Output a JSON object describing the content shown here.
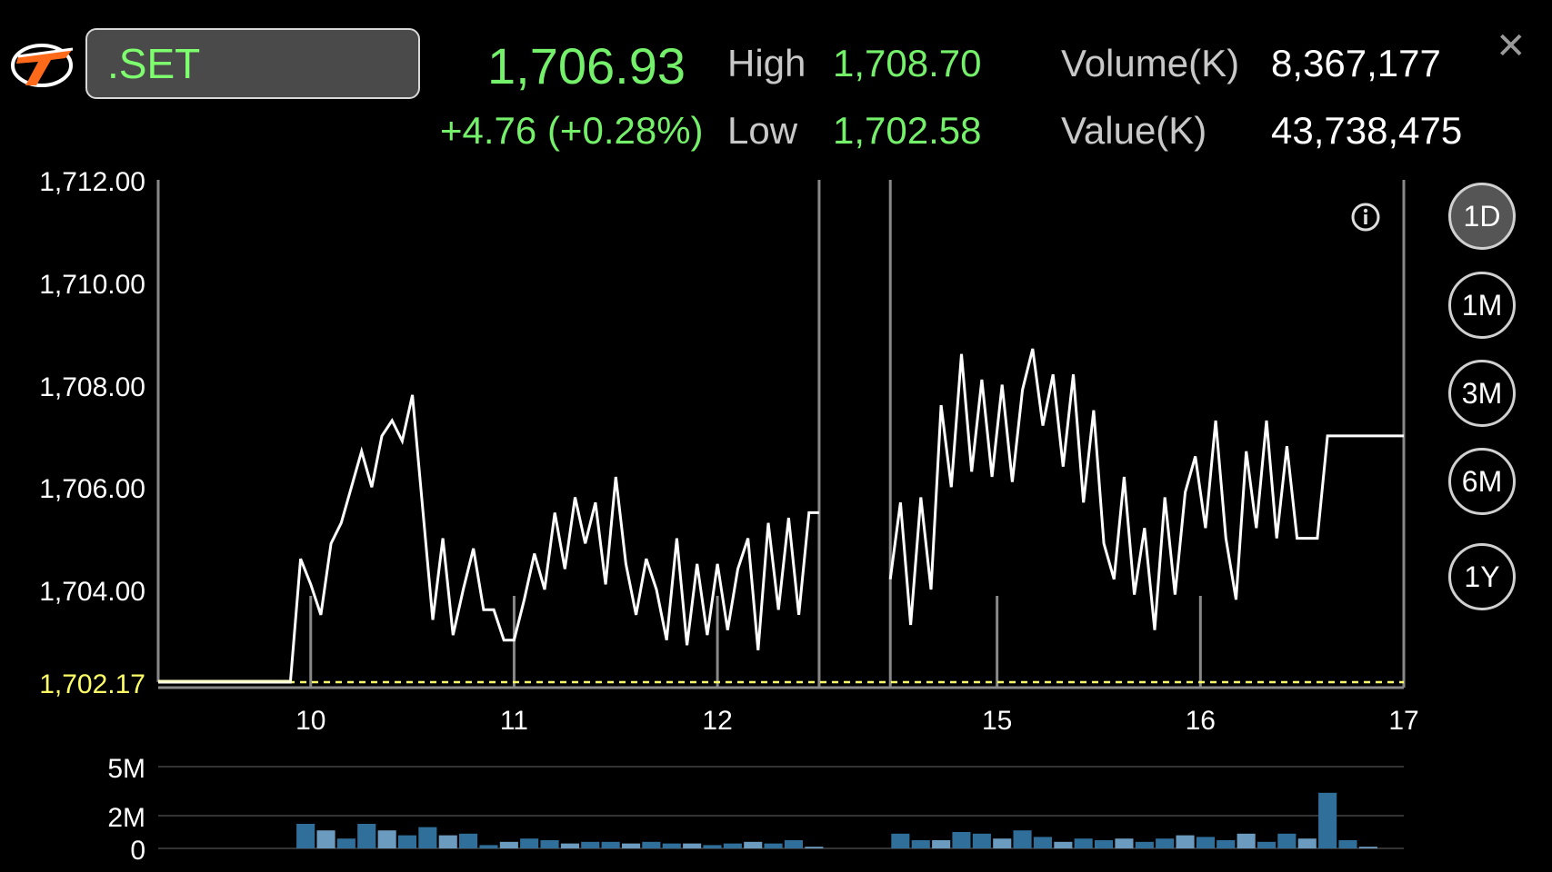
{
  "header": {
    "symbol": ".SET",
    "last": "1,706.93",
    "change": "+4.76 (+0.28%)",
    "high_label": "High",
    "high_value": "1,708.70",
    "low_label": "Low",
    "low_value": "1,702.58",
    "volume_label": "Volume(K)",
    "volume_value": "8,367,177",
    "value_label": "Value(K)",
    "value_value": "43,738,475",
    "close_icon": "close-icon"
  },
  "periods": [
    "1D",
    "1M",
    "3M",
    "6M",
    "1Y"
  ],
  "active_period": "1D",
  "colors": {
    "price_line": "#ffffff",
    "up": "#74f06a",
    "prev_close": "#ffff66",
    "volume_bar": "#2f6f9a",
    "volume_bar_light": "#6b9bbf"
  },
  "chart_data": [
    {
      "type": "line",
      "y_ticks": [
        "1,712.00",
        "1,710.00",
        "1,708.00",
        "1,706.00",
        "1,704.00"
      ],
      "ylim": [
        1702.17,
        1712
      ],
      "reference_line": {
        "label": "1,702.17",
        "value": 1702.17
      },
      "x_tick_labels": [
        "10",
        "11",
        "12",
        "15",
        "16",
        "17"
      ],
      "x_ticks": [
        3,
        7,
        11,
        16.5,
        20.5,
        24.5
      ],
      "xlim": [
        0,
        24.5
      ],
      "segments": [
        [
          [
            0,
            1702.17
          ],
          [
            2.6,
            1702.17
          ],
          [
            2.8,
            1704.6
          ],
          [
            3.0,
            1704.1
          ],
          [
            3.2,
            1703.5
          ],
          [
            3.4,
            1704.9
          ],
          [
            3.6,
            1705.3
          ],
          [
            3.8,
            1706.0
          ],
          [
            4.0,
            1706.7
          ],
          [
            4.2,
            1706.0
          ],
          [
            4.4,
            1707.0
          ],
          [
            4.6,
            1707.3
          ],
          [
            4.8,
            1706.9
          ],
          [
            5.0,
            1707.8
          ],
          [
            5.4,
            1703.4
          ],
          [
            5.6,
            1705.0
          ],
          [
            5.8,
            1703.1
          ],
          [
            6.0,
            1704.0
          ],
          [
            6.2,
            1704.8
          ],
          [
            6.4,
            1703.6
          ],
          [
            6.6,
            1703.6
          ],
          [
            6.8,
            1703.0
          ],
          [
            7.0,
            1703.0
          ],
          [
            7.2,
            1703.8
          ],
          [
            7.4,
            1704.7
          ],
          [
            7.6,
            1704.0
          ],
          [
            7.8,
            1705.5
          ],
          [
            8.0,
            1704.4
          ],
          [
            8.2,
            1705.8
          ],
          [
            8.4,
            1704.9
          ],
          [
            8.6,
            1705.7
          ],
          [
            8.8,
            1704.1
          ],
          [
            9.0,
            1706.2
          ],
          [
            9.2,
            1704.5
          ],
          [
            9.4,
            1703.5
          ],
          [
            9.6,
            1704.6
          ],
          [
            9.8,
            1704.0
          ],
          [
            10.0,
            1703.0
          ],
          [
            10.2,
            1705.0
          ],
          [
            10.4,
            1702.9
          ],
          [
            10.6,
            1704.5
          ],
          [
            10.8,
            1703.1
          ],
          [
            11.0,
            1704.5
          ],
          [
            11.2,
            1703.2
          ],
          [
            11.4,
            1704.4
          ],
          [
            11.6,
            1705.0
          ],
          [
            11.8,
            1702.8
          ],
          [
            12.0,
            1705.3
          ],
          [
            12.2,
            1703.6
          ],
          [
            12.4,
            1705.4
          ],
          [
            12.6,
            1703.5
          ],
          [
            12.8,
            1705.5
          ],
          [
            13.0,
            1705.5
          ]
        ],
        [
          [
            14.4,
            1704.2
          ],
          [
            14.6,
            1705.7
          ],
          [
            14.8,
            1703.3
          ],
          [
            15.0,
            1705.8
          ],
          [
            15.2,
            1704.0
          ],
          [
            15.4,
            1707.6
          ],
          [
            15.6,
            1706.0
          ],
          [
            15.8,
            1708.6
          ],
          [
            16.0,
            1706.3
          ],
          [
            16.2,
            1708.1
          ],
          [
            16.4,
            1706.2
          ],
          [
            16.6,
            1708.0
          ],
          [
            16.8,
            1706.1
          ],
          [
            17.0,
            1707.9
          ],
          [
            17.2,
            1708.7
          ],
          [
            17.4,
            1707.2
          ],
          [
            17.6,
            1708.2
          ],
          [
            17.8,
            1706.4
          ],
          [
            18.0,
            1708.2
          ],
          [
            18.2,
            1705.7
          ],
          [
            18.4,
            1707.5
          ],
          [
            18.6,
            1704.9
          ],
          [
            18.8,
            1704.2
          ],
          [
            19.0,
            1706.2
          ],
          [
            19.2,
            1703.9
          ],
          [
            19.4,
            1705.2
          ],
          [
            19.6,
            1703.2
          ],
          [
            19.8,
            1705.8
          ],
          [
            20.0,
            1703.9
          ],
          [
            20.2,
            1705.9
          ],
          [
            20.4,
            1706.6
          ],
          [
            20.6,
            1705.2
          ],
          [
            20.8,
            1707.3
          ],
          [
            21.0,
            1705.0
          ],
          [
            21.2,
            1703.8
          ],
          [
            21.4,
            1706.7
          ],
          [
            21.6,
            1705.2
          ],
          [
            21.8,
            1707.3
          ],
          [
            22.0,
            1705.0
          ],
          [
            22.2,
            1706.8
          ],
          [
            22.4,
            1705.0
          ],
          [
            22.6,
            1705.0
          ],
          [
            22.8,
            1705.0
          ],
          [
            23.0,
            1707.0
          ],
          [
            24.5,
            1707.0
          ]
        ]
      ],
      "session_breaks": [
        13,
        14.4
      ]
    },
    {
      "type": "bar",
      "y_ticks": [
        "5M",
        "2M",
        "0"
      ],
      "ylim": [
        0,
        5
      ],
      "bar_width": 0.36,
      "series": [
        {
          "values": [
            [
              2.9,
              1.5
            ],
            [
              3.3,
              1.1
            ],
            [
              3.7,
              0.6
            ],
            [
              4.1,
              1.5
            ],
            [
              4.5,
              1.1
            ],
            [
              4.9,
              0.8
            ],
            [
              5.3,
              1.3
            ],
            [
              5.7,
              0.8
            ],
            [
              6.1,
              0.9
            ],
            [
              6.5,
              0.2
            ],
            [
              6.9,
              0.4
            ],
            [
              7.3,
              0.6
            ],
            [
              7.7,
              0.5
            ],
            [
              8.1,
              0.3
            ],
            [
              8.5,
              0.4
            ],
            [
              8.9,
              0.4
            ],
            [
              9.3,
              0.3
            ],
            [
              9.7,
              0.4
            ],
            [
              10.1,
              0.3
            ],
            [
              10.5,
              0.3
            ],
            [
              10.9,
              0.2
            ],
            [
              11.3,
              0.3
            ],
            [
              11.7,
              0.4
            ],
            [
              12.1,
              0.3
            ],
            [
              12.5,
              0.5
            ],
            [
              12.9,
              0.1
            ],
            [
              14.6,
              0.9
            ],
            [
              15.0,
              0.5
            ],
            [
              15.4,
              0.5
            ],
            [
              15.8,
              1.0
            ],
            [
              16.2,
              0.9
            ],
            [
              16.6,
              0.6
            ],
            [
              17.0,
              1.1
            ],
            [
              17.4,
              0.7
            ],
            [
              17.8,
              0.4
            ],
            [
              18.2,
              0.6
            ],
            [
              18.6,
              0.5
            ],
            [
              19.0,
              0.6
            ],
            [
              19.4,
              0.4
            ],
            [
              19.8,
              0.6
            ],
            [
              20.2,
              0.8
            ],
            [
              20.6,
              0.7
            ],
            [
              21.0,
              0.5
            ],
            [
              21.4,
              0.9
            ],
            [
              21.8,
              0.4
            ],
            [
              22.2,
              0.9
            ],
            [
              22.6,
              0.6
            ],
            [
              23.0,
              3.4
            ],
            [
              23.4,
              0.5
            ],
            [
              23.8,
              0.1
            ]
          ]
        }
      ]
    }
  ]
}
